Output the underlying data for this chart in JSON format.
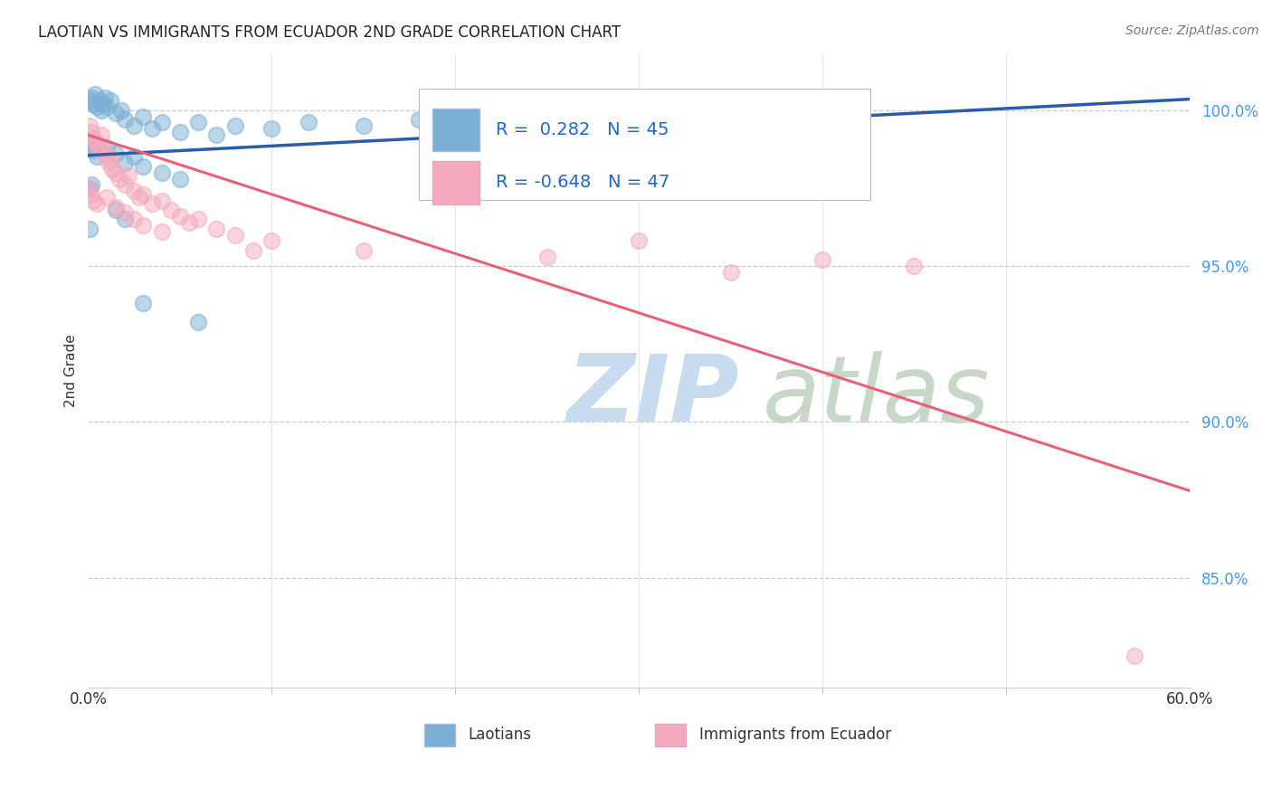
{
  "title": "LAOTIAN VS IMMIGRANTS FROM ECUADOR 2ND GRADE CORRELATION CHART",
  "source": "Source: ZipAtlas.com",
  "ylabel": "2nd Grade",
  "xlim": [
    0.0,
    0.6
  ],
  "ylim": [
    81.5,
    101.8
  ],
  "ytick_vals": [
    85.0,
    90.0,
    95.0,
    100.0
  ],
  "legend_r_blue": " 0.282",
  "legend_n_blue": "45",
  "legend_r_pink": "-0.648",
  "legend_n_pink": "47",
  "blue_color": "#7BAFD4",
  "pink_color": "#F4AABC",
  "blue_line_color": "#2A5CA8",
  "pink_line_color": "#E8607A",
  "blue_scatter": [
    [
      0.001,
      100.3
    ],
    [
      0.002,
      100.4
    ],
    [
      0.003,
      100.2
    ],
    [
      0.004,
      100.5
    ],
    [
      0.005,
      100.1
    ],
    [
      0.006,
      100.3
    ],
    [
      0.007,
      100.0
    ],
    [
      0.008,
      100.2
    ],
    [
      0.009,
      100.4
    ],
    [
      0.01,
      100.1
    ],
    [
      0.012,
      100.3
    ],
    [
      0.015,
      99.9
    ],
    [
      0.018,
      100.0
    ],
    [
      0.02,
      99.7
    ],
    [
      0.025,
      99.5
    ],
    [
      0.03,
      99.8
    ],
    [
      0.035,
      99.4
    ],
    [
      0.04,
      99.6
    ],
    [
      0.05,
      99.3
    ],
    [
      0.06,
      99.6
    ],
    [
      0.07,
      99.2
    ],
    [
      0.08,
      99.5
    ],
    [
      0.1,
      99.4
    ],
    [
      0.12,
      99.6
    ],
    [
      0.15,
      99.5
    ],
    [
      0.18,
      99.7
    ],
    [
      0.2,
      99.8
    ],
    [
      0.001,
      99.0
    ],
    [
      0.002,
      98.9
    ],
    [
      0.003,
      98.7
    ],
    [
      0.005,
      98.5
    ],
    [
      0.01,
      98.8
    ],
    [
      0.015,
      98.6
    ],
    [
      0.02,
      98.3
    ],
    [
      0.025,
      98.5
    ],
    [
      0.03,
      98.2
    ],
    [
      0.04,
      98.0
    ],
    [
      0.05,
      97.8
    ],
    [
      0.001,
      97.5
    ],
    [
      0.002,
      97.6
    ],
    [
      0.015,
      96.8
    ],
    [
      0.02,
      96.5
    ],
    [
      0.03,
      93.8
    ],
    [
      0.06,
      93.2
    ],
    [
      0.001,
      96.2
    ]
  ],
  "pink_scatter": [
    [
      0.001,
      99.5
    ],
    [
      0.002,
      99.3
    ],
    [
      0.003,
      99.1
    ],
    [
      0.004,
      99.0
    ],
    [
      0.005,
      98.9
    ],
    [
      0.006,
      98.7
    ],
    [
      0.007,
      99.2
    ],
    [
      0.008,
      98.8
    ],
    [
      0.009,
      98.6
    ],
    [
      0.01,
      98.5
    ],
    [
      0.011,
      98.3
    ],
    [
      0.012,
      98.4
    ],
    [
      0.013,
      98.1
    ],
    [
      0.015,
      98.0
    ],
    [
      0.017,
      97.8
    ],
    [
      0.02,
      97.6
    ],
    [
      0.022,
      97.9
    ],
    [
      0.025,
      97.4
    ],
    [
      0.028,
      97.2
    ],
    [
      0.03,
      97.3
    ],
    [
      0.035,
      97.0
    ],
    [
      0.04,
      97.1
    ],
    [
      0.045,
      96.8
    ],
    [
      0.05,
      96.6
    ],
    [
      0.055,
      96.4
    ],
    [
      0.06,
      96.5
    ],
    [
      0.07,
      96.2
    ],
    [
      0.08,
      96.0
    ],
    [
      0.001,
      97.5
    ],
    [
      0.002,
      97.3
    ],
    [
      0.003,
      97.1
    ],
    [
      0.005,
      97.0
    ],
    [
      0.01,
      97.2
    ],
    [
      0.015,
      96.9
    ],
    [
      0.02,
      96.7
    ],
    [
      0.025,
      96.5
    ],
    [
      0.03,
      96.3
    ],
    [
      0.04,
      96.1
    ],
    [
      0.09,
      95.5
    ],
    [
      0.1,
      95.8
    ],
    [
      0.15,
      95.5
    ],
    [
      0.25,
      95.3
    ],
    [
      0.3,
      95.8
    ],
    [
      0.35,
      94.8
    ],
    [
      0.4,
      95.2
    ],
    [
      0.45,
      95.0
    ],
    [
      0.57,
      82.5
    ]
  ],
  "blue_trendline_x": [
    0.0,
    0.6
  ],
  "blue_trendline_y": [
    98.55,
    100.35
  ],
  "pink_trendline_x": [
    0.0,
    0.6
  ],
  "pink_trendline_y": [
    99.2,
    87.8
  ]
}
